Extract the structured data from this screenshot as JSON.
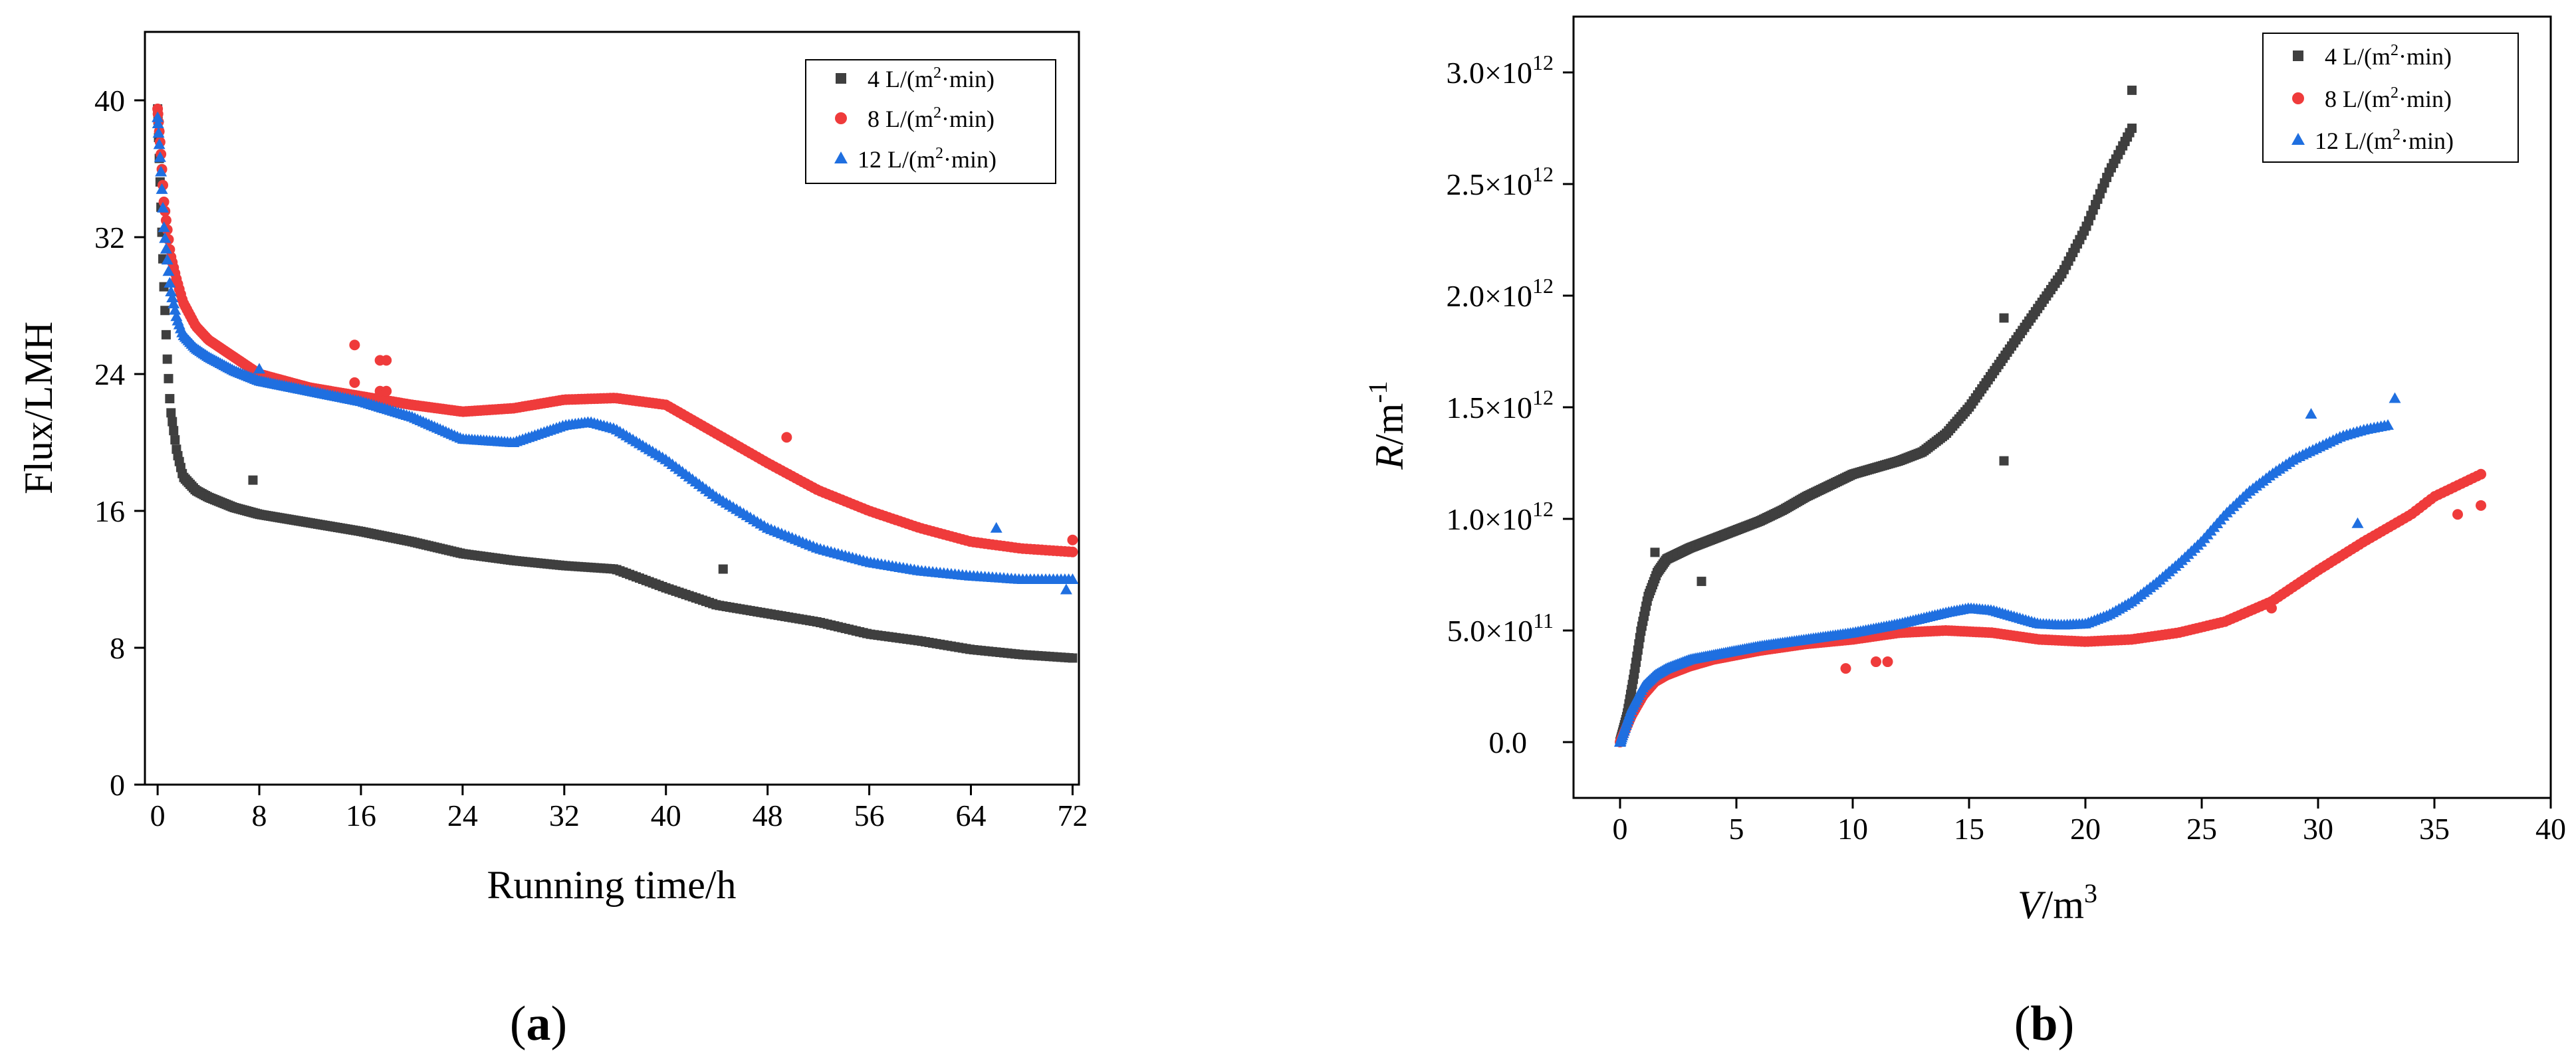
{
  "figure": {
    "panels": [
      {
        "label_open": "(",
        "label_letter": "a",
        "label_close": ")"
      },
      {
        "label_open": "(",
        "label_letter": "b",
        "label_close": ")"
      }
    ]
  },
  "colors": {
    "s4": "#3f3f3f",
    "s8": "#ef3b3b",
    "s12": "#1f6fe0"
  },
  "chart_data": [
    {
      "type": "scatter",
      "title": "",
      "xlabel": "Running time/h",
      "ylabel": "Flux/LMH",
      "xlim": [
        -1,
        72.5
      ],
      "ylim": [
        0,
        44
      ],
      "xticks": [
        0,
        8,
        16,
        24,
        32,
        40,
        48,
        56,
        64,
        72
      ],
      "yticks": [
        0,
        8,
        16,
        24,
        32,
        40
      ],
      "legend_position": "top-right",
      "series": [
        {
          "name": "4 L/(m²·min)",
          "name_parts": [
            "4 L/(m",
            "2",
            "·min)"
          ],
          "marker": "square",
          "color": "#3f3f3f",
          "x": [
            0,
            0.25,
            0.5,
            0.75,
            1,
            1.5,
            2,
            3,
            4,
            6,
            8,
            12,
            16,
            20,
            24,
            28,
            32,
            36,
            40,
            44,
            48,
            52,
            56,
            60,
            64,
            68,
            72
          ],
          "y": [
            39.5,
            34,
            29,
            25,
            22,
            19.5,
            18,
            17.2,
            16.8,
            16.2,
            15.8,
            15.3,
            14.8,
            14.2,
            13.5,
            13.1,
            12.8,
            12.6,
            11.5,
            10.5,
            10,
            9.5,
            8.8,
            8.4,
            7.9,
            7.6,
            7.4
          ],
          "outliers": [
            [
              7.5,
              17.8
            ],
            [
              44.5,
              12.6
            ]
          ]
        },
        {
          "name": "8 L/(m²·min)",
          "name_parts": [
            "8 L/(m",
            "2",
            "·min)"
          ],
          "marker": "circle",
          "color": "#ef3b3b",
          "x": [
            0,
            0.25,
            0.5,
            1,
            1.5,
            2,
            3,
            4,
            6,
            8,
            12,
            16,
            20,
            24,
            28,
            32,
            36,
            40,
            44,
            48,
            52,
            56,
            60,
            64,
            68,
            72
          ],
          "y": [
            39.5,
            37,
            34,
            31,
            29.5,
            28.2,
            26.8,
            26,
            25,
            24,
            23.2,
            22.7,
            22.2,
            21.8,
            22,
            22.5,
            22.6,
            22.2,
            20.5,
            18.8,
            17.2,
            16,
            15,
            14.2,
            13.8,
            13.6
          ],
          "outliers": [
            [
              15.5,
              25.7
            ],
            [
              17.5,
              24.8
            ],
            [
              18,
              24.8
            ],
            [
              17.5,
              23
            ],
            [
              18,
              23
            ],
            [
              15.5,
              23.5
            ],
            [
              49.5,
              20.3
            ],
            [
              72,
              14.3
            ]
          ]
        },
        {
          "name": "12 L/(m²·min)",
          "name_parts": [
            "12 L/(m",
            "2",
            "·min)"
          ],
          "marker": "triangle",
          "color": "#1f6fe0",
          "x": [
            0,
            0.25,
            0.5,
            1,
            1.5,
            2,
            3,
            4,
            6,
            8,
            12,
            16,
            20,
            24,
            28,
            32,
            34,
            36,
            40,
            44,
            48,
            52,
            56,
            60,
            64,
            68,
            72
          ],
          "y": [
            39,
            36,
            32.5,
            29,
            27.3,
            26.3,
            25.5,
            25,
            24.2,
            23.6,
            23,
            22.4,
            21.5,
            20.2,
            20,
            21,
            21.2,
            20.8,
            19,
            16.8,
            15,
            13.8,
            13,
            12.5,
            12.2,
            12,
            12
          ],
          "outliers": [
            [
              8,
              24.3
            ],
            [
              66,
              15
            ],
            [
              71.5,
              11.4
            ]
          ]
        }
      ]
    },
    {
      "type": "scatter",
      "title": "",
      "xlabel": "V/m³",
      "xlabel_parts": [
        "V",
        "/m",
        "3"
      ],
      "ylabel": "R/m⁻¹",
      "ylabel_parts": [
        "R",
        "/m",
        "-1"
      ],
      "xlim": [
        -2,
        40
      ],
      "ylim": [
        -250000000000.0,
        3250000000000.0
      ],
      "xticks": [
        0,
        5,
        10,
        15,
        20,
        25,
        30,
        35,
        40
      ],
      "yticks": [
        0,
        500000000000.0,
        1000000000000.0,
        1500000000000.0,
        2000000000000.0,
        2500000000000.0,
        3000000000000.0
      ],
      "ytick_labels": [
        {
          "mant": "0.0",
          "exp": ""
        },
        {
          "mant": "5.0×10",
          "exp": "11"
        },
        {
          "mant": "1.0×10",
          "exp": "12"
        },
        {
          "mant": "1.5×10",
          "exp": "12"
        },
        {
          "mant": "2.0×10",
          "exp": "12"
        },
        {
          "mant": "2.5×10",
          "exp": "12"
        },
        {
          "mant": "3.0×10",
          "exp": "12"
        }
      ],
      "legend_position": "top-right",
      "series": [
        {
          "name": "4 L/(m²·min)",
          "name_parts": [
            "4 L/(m",
            "2",
            "·min)"
          ],
          "marker": "square",
          "color": "#3f3f3f",
          "x": [
            0,
            0.3,
            0.6,
            0.9,
            1.2,
            1.6,
            2,
            3,
            4,
            5,
            6,
            7,
            8,
            9,
            10,
            11,
            12,
            13,
            14,
            15,
            16,
            17,
            18,
            19,
            20,
            21,
            22
          ],
          "y": [
            0,
            120000000000.0,
            300000000000.0,
            500000000000.0,
            650000000000.0,
            760000000000.0,
            820000000000.0,
            870000000000.0,
            910000000000.0,
            950000000000.0,
            990000000000.0,
            1040000000000.0,
            1100000000000.0,
            1150000000000.0,
            1200000000000.0,
            1230000000000.0,
            1260000000000.0,
            1300000000000.0,
            1380000000000.0,
            1500000000000.0,
            1650000000000.0,
            1800000000000.0,
            1950000000000.0,
            2100000000000.0,
            2300000000000.0,
            2550000000000.0,
            2750000000000.0
          ],
          "outliers": [
            [
              1.5,
              850000000000.0
            ],
            [
              3.5,
              720000000000.0
            ],
            [
              16.5,
              1260000000000.0
            ],
            [
              22,
              2920000000000.0
            ],
            [
              16.5,
              1900000000000.0
            ]
          ]
        },
        {
          "name": "8 L/(m²·min)",
          "name_parts": [
            "8 L/(m",
            "2",
            "·min)"
          ],
          "marker": "circle",
          "color": "#ef3b3b",
          "x": [
            0,
            0.5,
            1,
            1.5,
            2,
            3,
            4,
            5,
            6,
            8,
            10,
            12,
            14,
            16,
            18,
            20,
            22,
            24,
            26,
            28,
            30,
            32,
            34,
            35,
            36,
            37
          ],
          "y": [
            0,
            120000000000.0,
            210000000000.0,
            270000000000.0,
            300000000000.0,
            340000000000.0,
            370000000000.0,
            390000000000.0,
            410000000000.0,
            440000000000.0,
            460000000000.0,
            490000000000.0,
            500000000000.0,
            490000000000.0,
            460000000000.0,
            450000000000.0,
            460000000000.0,
            490000000000.0,
            540000000000.0,
            630000000000.0,
            770000000000.0,
            900000000000.0,
            1020000000000.0,
            1100000000000.0,
            1150000000000.0,
            1200000000000.0
          ],
          "outliers": [
            [
              9.7,
              330000000000.0
            ],
            [
              11,
              360000000000.0
            ],
            [
              11.5,
              360000000000.0
            ],
            [
              28,
              600000000000.0
            ],
            [
              36,
              1020000000000.0
            ],
            [
              37,
              1060000000000.0
            ]
          ]
        },
        {
          "name": "12 L/(m²·min)",
          "name_parts": [
            "12 L/(m",
            "2",
            "·min)"
          ],
          "marker": "triangle",
          "color": "#1f6fe0",
          "x": [
            0,
            0.5,
            1,
            1.5,
            2,
            3,
            4,
            5,
            6,
            8,
            10,
            12,
            14,
            15,
            16,
            17,
            18,
            19,
            20,
            21,
            22,
            23,
            24,
            25,
            26,
            27,
            28,
            29,
            30,
            31,
            32,
            33
          ],
          "y": [
            0,
            150000000000.0,
            250000000000.0,
            300000000000.0,
            330000000000.0,
            370000000000.0,
            390000000000.0,
            410000000000.0,
            430000000000.0,
            460000000000.0,
            490000000000.0,
            530000000000.0,
            580000000000.0,
            600000000000.0,
            590000000000.0,
            560000000000.0,
            530000000000.0,
            525000000000.0,
            530000000000.0,
            570000000000.0,
            630000000000.0,
            710000000000.0,
            800000000000.0,
            900000000000.0,
            1020000000000.0,
            1120000000000.0,
            1200000000000.0,
            1270000000000.0,
            1320000000000.0,
            1370000000000.0,
            1400000000000.0,
            1420000000000.0
          ],
          "outliers": [
            [
              29.7,
              1470000000000.0
            ],
            [
              31.7,
              980000000000.0
            ],
            [
              33.3,
              1540000000000.0
            ]
          ]
        }
      ]
    }
  ]
}
